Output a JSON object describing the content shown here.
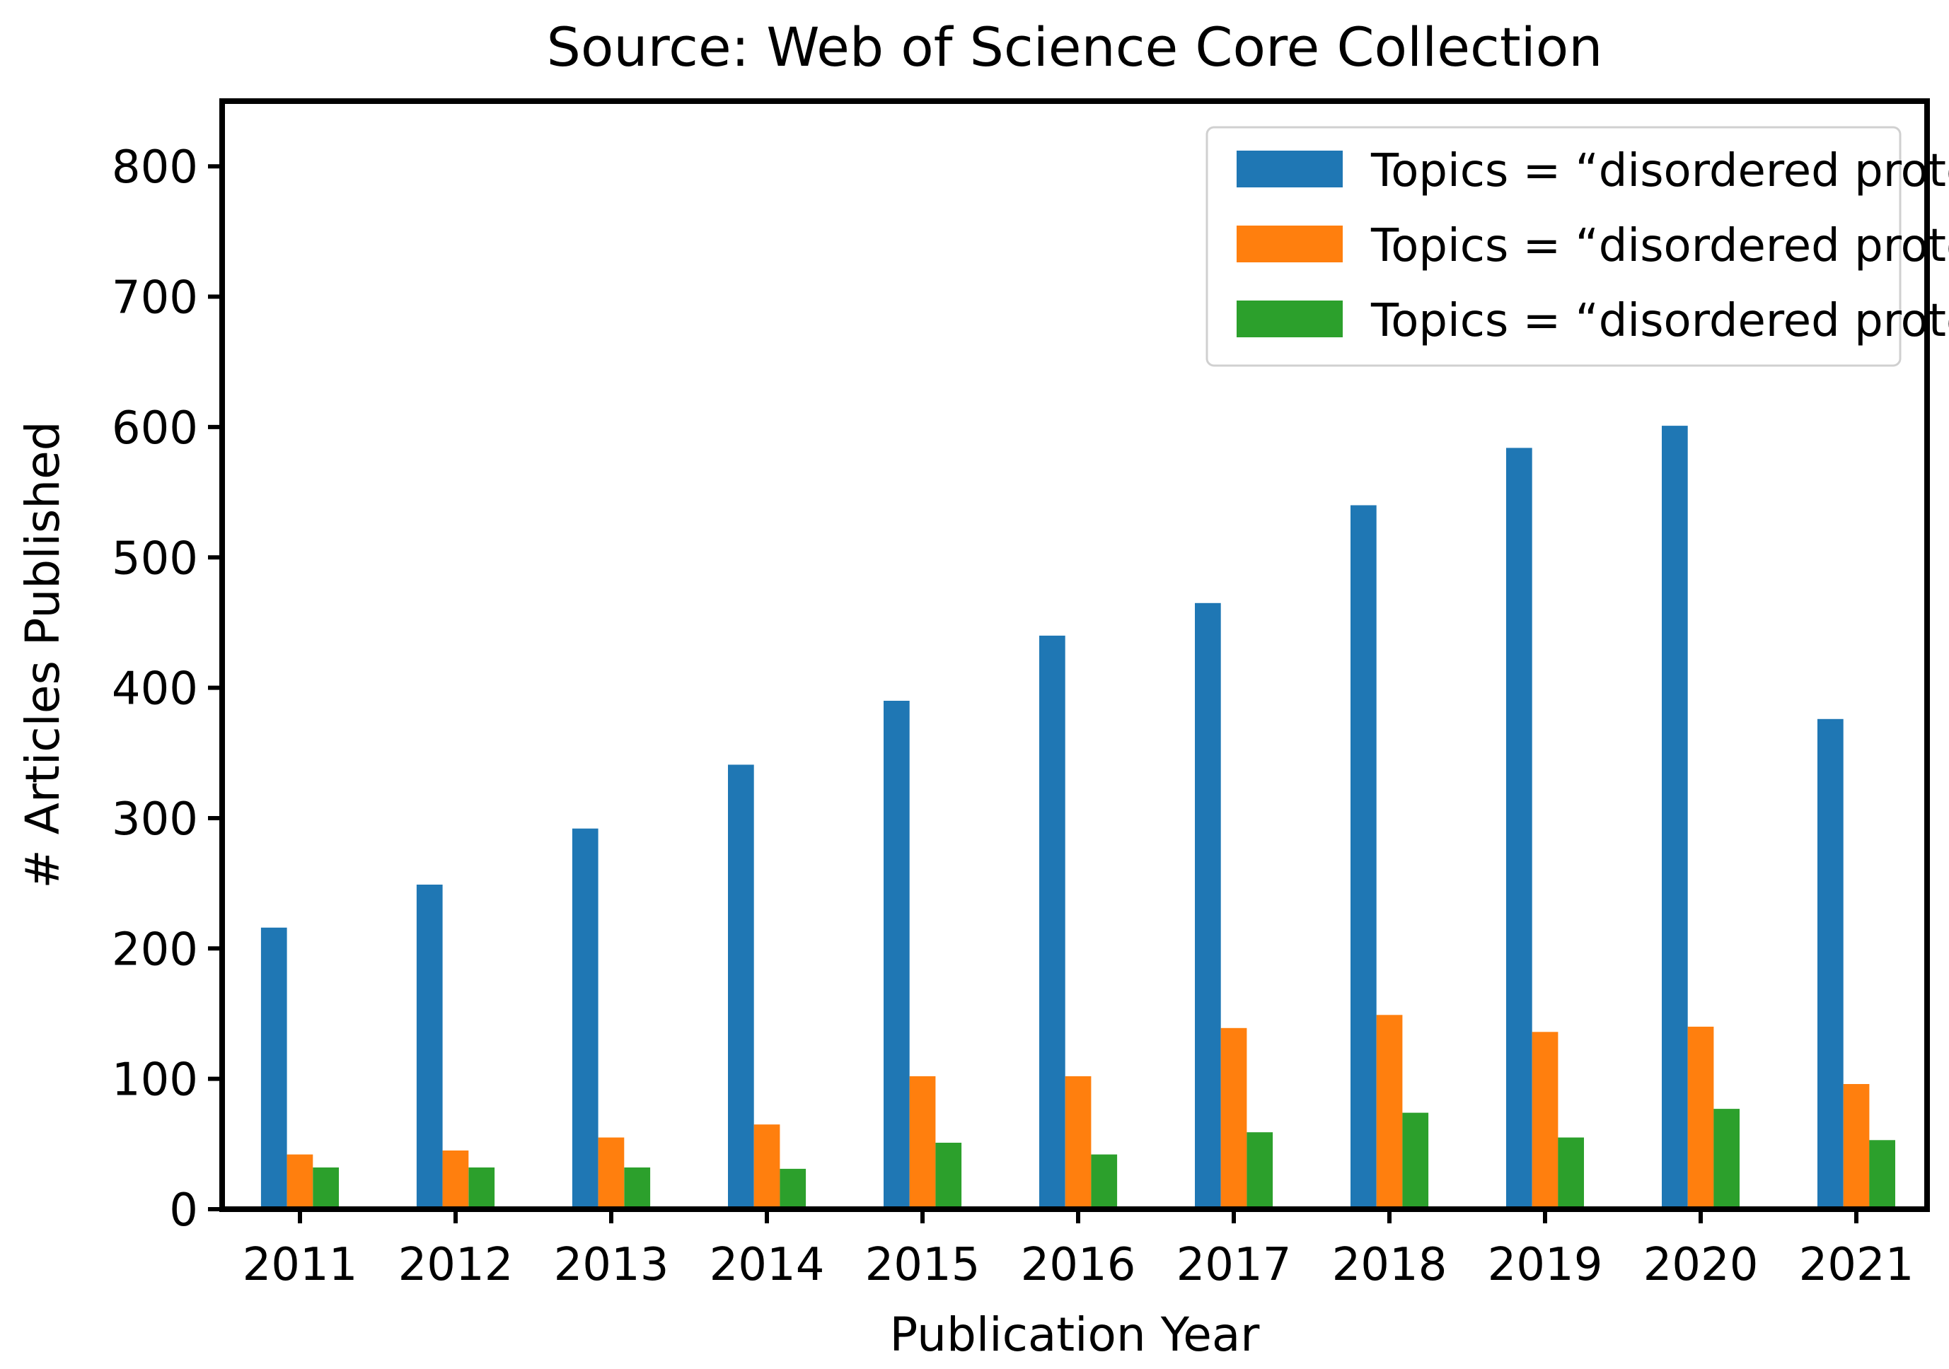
{
  "chart_data": {
    "type": "bar",
    "title": "Source: Web of Science Core Collection",
    "xlabel": "Publication Year",
    "ylabel": "# Articles Published",
    "categories": [
      "2011",
      "2012",
      "2013",
      "2014",
      "2015",
      "2016",
      "2017",
      "2018",
      "2019",
      "2020",
      "2021"
    ],
    "ylim": [
      0,
      850
    ],
    "yticks": [
      0,
      100,
      200,
      300,
      400,
      500,
      600,
      700,
      800
    ],
    "grid": false,
    "legend_position": "top-right",
    "series": [
      {
        "name": "Topics = “disordered protein” & “molecular dynamics”",
        "color": "#1f77b4",
        "values": [
          216,
          249,
          292,
          341,
          390,
          440,
          465,
          540,
          584,
          601,
          376
        ]
      },
      {
        "name": "Topics = “disordered protein” & “force fields”",
        "color": "#ff7f0e",
        "values": [
          42,
          45,
          55,
          65,
          102,
          102,
          139,
          149,
          136,
          140,
          96
        ]
      },
      {
        "name": "Topics = “disordered protein” & “enhanced sampling”",
        "color": "#2ca02c",
        "values": [
          32,
          32,
          32,
          31,
          51,
          42,
          59,
          74,
          55,
          77,
          53
        ]
      }
    ]
  }
}
